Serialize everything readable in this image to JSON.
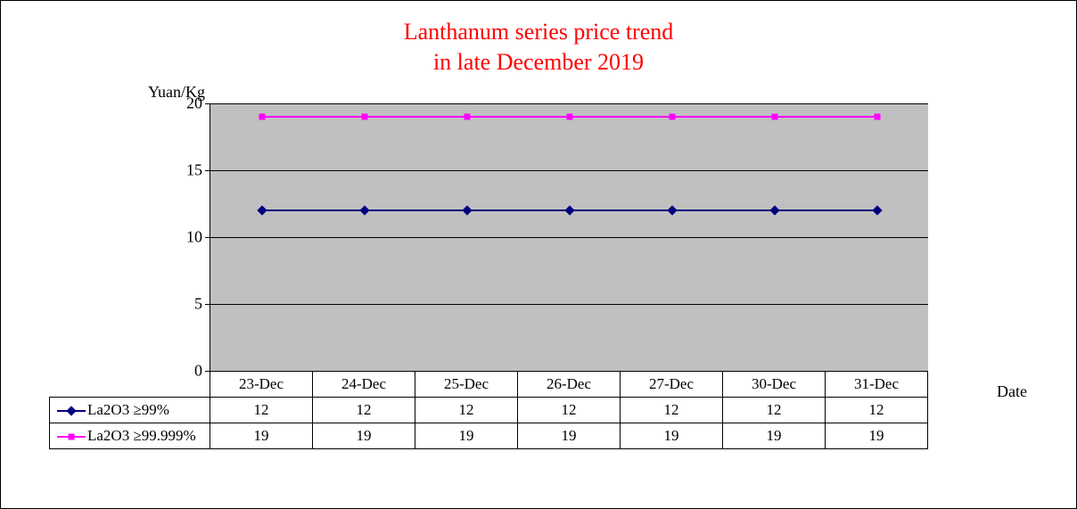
{
  "chart": {
    "type": "line",
    "title_line1": "Lanthanum series price trend",
    "title_line2": "in late December 2019",
    "title_color": "#ff0000",
    "title_fontsize": 26,
    "ylabel": "Yuan/Kg",
    "xlabel": "Date",
    "label_fontsize": 18,
    "categories": [
      "23-Dec",
      "24-Dec",
      "25-Dec",
      "26-Dec",
      "27-Dec",
      "30-Dec",
      "31-Dec"
    ],
    "ylim": [
      0,
      20
    ],
    "ytick_step": 5,
    "yticks": [
      0,
      5,
      10,
      15,
      20
    ],
    "plot_bg": "#c0c0c0",
    "grid_color": "#000000",
    "page_bg": "#ffffff",
    "series": [
      {
        "name": "La2O3 ≥99%",
        "color": "#000080",
        "marker": "diamond",
        "values": [
          12,
          12,
          12,
          12,
          12,
          12,
          12
        ]
      },
      {
        "name": "La2O3 ≥99.999%",
        "color": "#ff00ff",
        "marker": "square",
        "values": [
          19,
          19,
          19,
          19,
          19,
          19,
          19
        ]
      }
    ]
  }
}
